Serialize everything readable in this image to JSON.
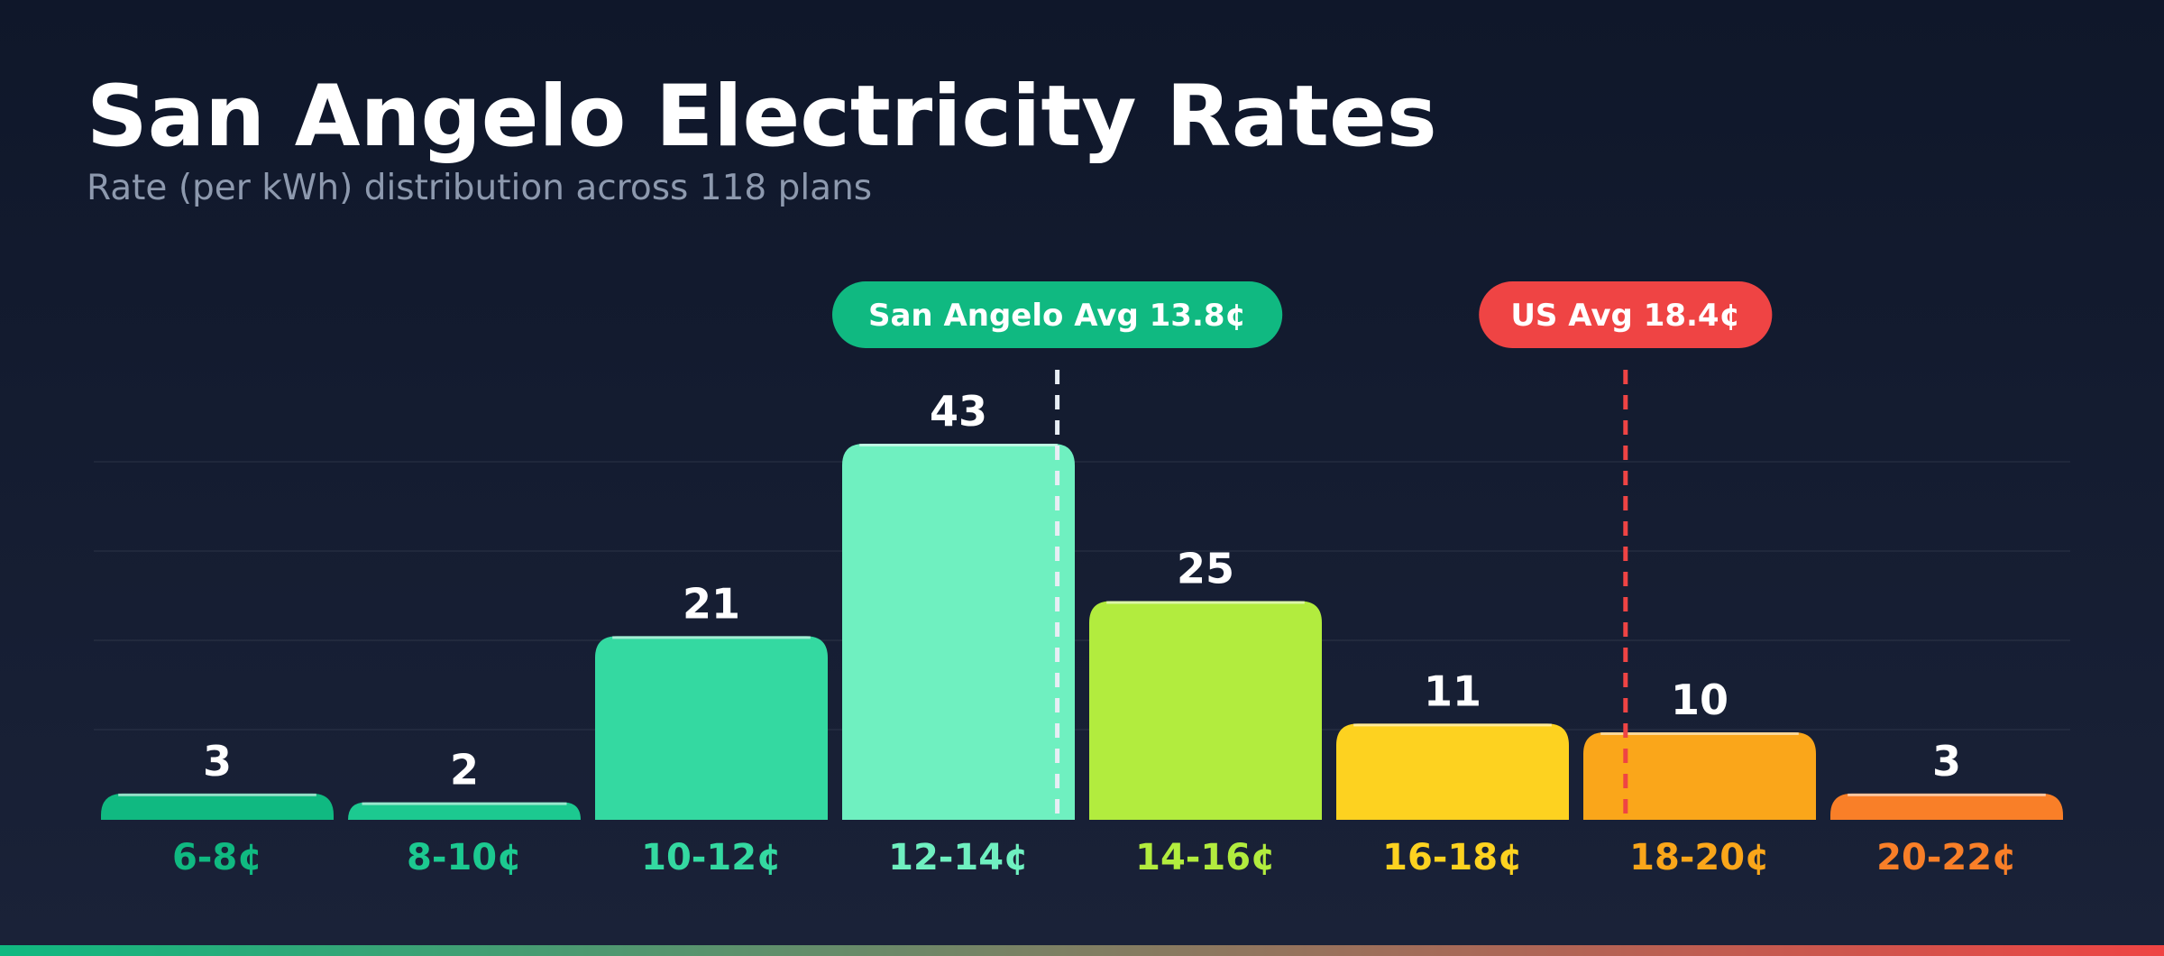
{
  "header": {
    "title": "San Angelo Electricity Rates",
    "subtitle": "Rate (per kWh) distribution across 118 plans"
  },
  "chart_data": {
    "type": "bar",
    "title": "San Angelo Electricity Rates",
    "subtitle": "Rate (per kWh) distribution across 118 plans",
    "xlabel": "",
    "ylabel": "",
    "categories": [
      "6-8¢",
      "8-10¢",
      "10-12¢",
      "12-14¢",
      "14-16¢",
      "16-18¢",
      "18-20¢",
      "20-22¢"
    ],
    "values": [
      3,
      2,
      21,
      43,
      25,
      11,
      10,
      3
    ],
    "colors": [
      "#10b981",
      "#1cc990",
      "#34d9a1",
      "#6ff0c0",
      "#b2ec3e",
      "#fdd220",
      "#faa61a",
      "#f97f28"
    ],
    "x_range": [
      6,
      22
    ],
    "ylim": [
      0,
      43
    ],
    "grid": true,
    "data_labels": true,
    "reference_lines": [
      {
        "label": "San Angelo Avg 13.8¢",
        "value": 13.8,
        "color": "#10b981",
        "line_color": "#e8eef5"
      },
      {
        "label": "US Avg 18.4¢",
        "value": 18.4,
        "color": "#ef4444",
        "line_color": "#ef4444"
      }
    ]
  },
  "footer": {
    "gradient_colors": [
      "#10b981",
      "#ef4444"
    ]
  }
}
